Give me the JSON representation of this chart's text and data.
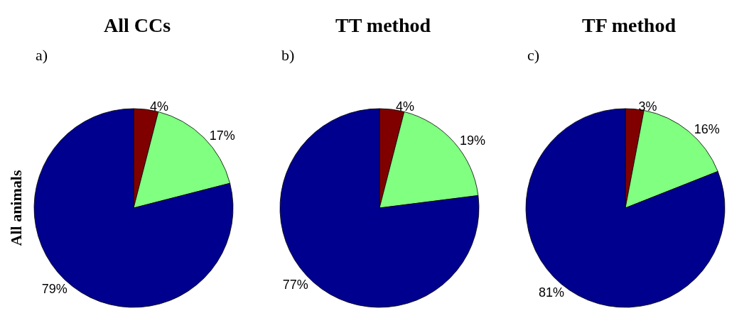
{
  "chart_data": [
    {
      "type": "pie",
      "title": "All CCs",
      "ylabel": "All animals",
      "annotations": [
        "a)"
      ],
      "categories": [
        null,
        null,
        null
      ],
      "values": [
        4,
        17,
        79
      ],
      "value_labels": [
        "4%",
        "17%",
        "79%"
      ],
      "colors": [
        "#800000",
        "#80ff80",
        "#00008f"
      ]
    },
    {
      "type": "pie",
      "title": "TT method",
      "annotations": [
        "b)"
      ],
      "categories": [
        null,
        null,
        null
      ],
      "values": [
        4,
        19,
        77
      ],
      "value_labels": [
        "4%",
        "19%",
        "77%"
      ],
      "colors": [
        "#800000",
        "#80ff80",
        "#00008f"
      ]
    },
    {
      "type": "pie",
      "title": "TF method",
      "annotations": [
        "c)"
      ],
      "categories": [
        null,
        null,
        null
      ],
      "values": [
        3,
        16,
        81
      ],
      "value_labels": [
        "3%",
        "16%",
        "81%"
      ],
      "colors": [
        "#800000",
        "#80ff80",
        "#00008f"
      ]
    }
  ]
}
